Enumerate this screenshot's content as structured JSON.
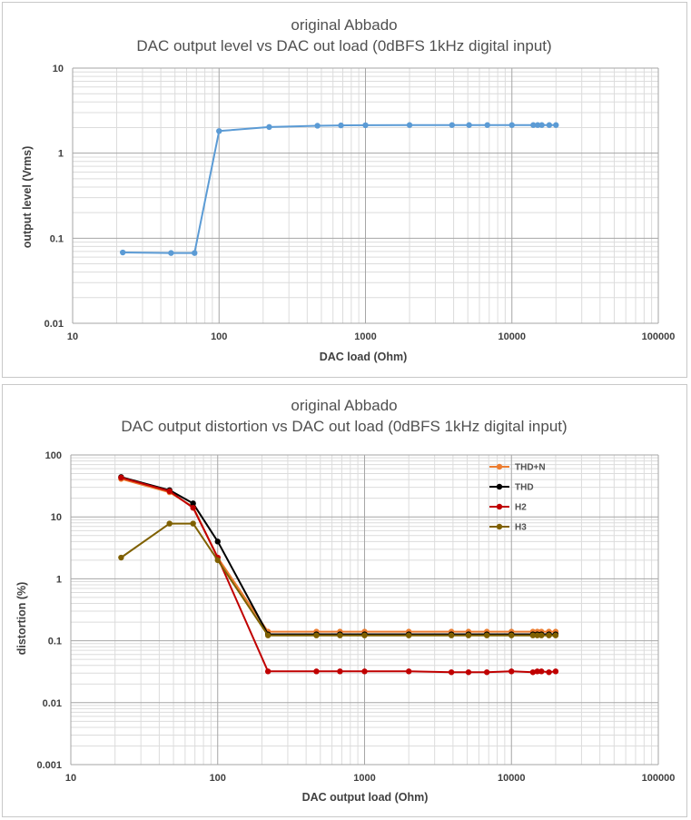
{
  "chart_data": [
    {
      "type": "line",
      "title": "original Abbado",
      "subtitle": "DAC output level vs DAC out load (0dBFS 1kHz digital input)",
      "xlabel": "DAC load (Ohm)",
      "ylabel": "output level (Vrms)",
      "xscale": "log",
      "yscale": "log",
      "xlim": [
        10,
        100000
      ],
      "ylim": [
        0.01,
        10
      ],
      "x_ticks": [
        "10",
        "100",
        "1000",
        "10000",
        "100000"
      ],
      "y_ticks": [
        "0.01",
        "0.1",
        "1",
        "10"
      ],
      "grid": true,
      "legend": "none",
      "series": [
        {
          "color": "#5b9bd5",
          "x": [
            22,
            47,
            68,
            100,
            220,
            470,
            680,
            1000,
            2000,
            3900,
            5100,
            6800,
            10000,
            14000,
            15000,
            16000,
            18000,
            20000
          ],
          "y": [
            0.068,
            0.067,
            0.067,
            1.82,
            2.03,
            2.1,
            2.12,
            2.13,
            2.14,
            2.14,
            2.14,
            2.14,
            2.14,
            2.14,
            2.14,
            2.14,
            2.14,
            2.14
          ]
        }
      ]
    },
    {
      "type": "line",
      "title": "original Abbado",
      "subtitle": "DAC output distortion vs DAC out load (0dBFS 1kHz digital input)",
      "xlabel": "DAC output load (Ohm)",
      "ylabel": "distortion (%)",
      "xscale": "log",
      "yscale": "log",
      "xlim": [
        10,
        100000
      ],
      "ylim": [
        0.001,
        100
      ],
      "x_ticks": [
        "10",
        "100",
        "1000",
        "10000",
        "100000"
      ],
      "y_ticks": [
        "0.001",
        "0.01",
        "0.1",
        "1",
        "10",
        "100"
      ],
      "grid": true,
      "legend": "top-right",
      "series": [
        {
          "name": "THD+N",
          "color": "#ed7d31",
          "x": [
            22,
            47,
            68,
            100,
            220,
            470,
            680,
            1000,
            2000,
            3900,
            5100,
            6800,
            10000,
            14000,
            15000,
            16000,
            18000,
            20000
          ],
          "y": [
            41,
            25,
            14.5,
            2.2,
            0.14,
            0.14,
            0.14,
            0.14,
            0.14,
            0.14,
            0.14,
            0.14,
            0.14,
            0.14,
            0.14,
            0.14,
            0.14,
            0.14
          ]
        },
        {
          "name": "THD",
          "color": "#000000",
          "x": [
            22,
            47,
            68,
            100,
            220,
            470,
            680,
            1000,
            2000,
            3900,
            5100,
            6800,
            10000,
            14000,
            15000,
            16000,
            18000,
            20000
          ],
          "y": [
            44,
            27,
            16.5,
            4.0,
            0.127,
            0.127,
            0.127,
            0.127,
            0.127,
            0.127,
            0.127,
            0.127,
            0.127,
            0.127,
            0.127,
            0.127,
            0.127,
            0.127
          ]
        },
        {
          "name": "H2",
          "color": "#c00000",
          "x": [
            22,
            47,
            68,
            100,
            220,
            470,
            680,
            1000,
            2000,
            3900,
            5100,
            6800,
            10000,
            14000,
            15000,
            16000,
            18000,
            20000
          ],
          "y": [
            43,
            26,
            14,
            2.2,
            0.032,
            0.032,
            0.032,
            0.032,
            0.032,
            0.031,
            0.031,
            0.031,
            0.032,
            0.031,
            0.032,
            0.032,
            0.031,
            0.032
          ]
        },
        {
          "name": "H3",
          "color": "#7f6000",
          "x": [
            22,
            47,
            68,
            100,
            220,
            470,
            680,
            1000,
            2000,
            3900,
            5100,
            6800,
            10000,
            14000,
            15000,
            16000,
            18000,
            20000
          ],
          "y": [
            2.2,
            7.8,
            7.8,
            2.0,
            0.122,
            0.122,
            0.122,
            0.122,
            0.122,
            0.122,
            0.122,
            0.122,
            0.122,
            0.122,
            0.122,
            0.122,
            0.122,
            0.122
          ]
        }
      ]
    }
  ]
}
